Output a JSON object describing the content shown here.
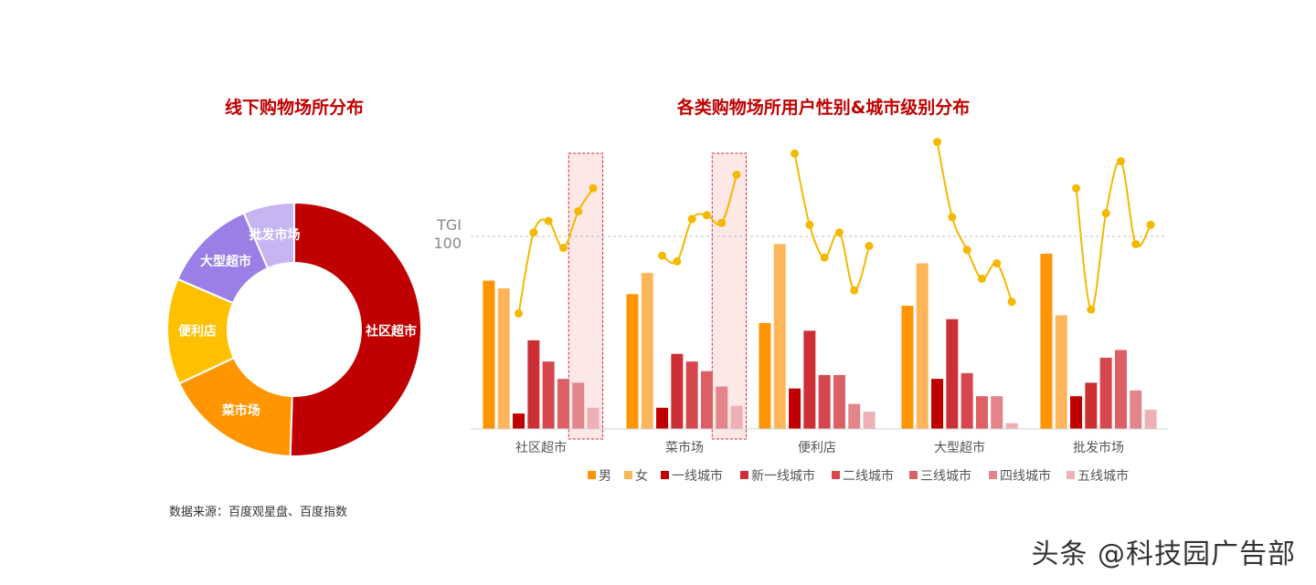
{
  "watermark": "头条 @科技园广告部",
  "source": "数据来源：百度观星盘、百度指数",
  "chart_data": [
    {
      "type": "pie",
      "donut": true,
      "title": "线下购物场所分布",
      "categories": [
        "社区超市",
        "菜市场",
        "便利店",
        "大型超市",
        "批发市场"
      ],
      "values": [
        50.5,
        17.5,
        13.5,
        12,
        6.5
      ],
      "colors": [
        "#c00000",
        "#ff9500",
        "#ffc000",
        "#9b7fe6",
        "#c7b5f2"
      ]
    },
    {
      "type": "bar+line",
      "title": "各类购物场所用户性别&城市级别分布",
      "categories": [
        "社区超市",
        "菜市场",
        "便利店",
        "大型超市",
        "批发市场"
      ],
      "reference_line": {
        "label_top": "TGI",
        "label_bottom": "100",
        "value": 100
      },
      "series": [
        {
          "name": "男",
          "color": "#ff9500",
          "values": [
            77,
            70,
            55,
            64,
            91
          ]
        },
        {
          "name": "女",
          "color": "#ffb55a",
          "values": [
            73,
            81,
            96,
            86,
            59
          ]
        },
        {
          "name": "一线城市",
          "color": "#c00000",
          "values": [
            8,
            11,
            21,
            26,
            17
          ]
        },
        {
          "name": "新一线城市",
          "color": "#cc2f36",
          "values": [
            46,
            39,
            51,
            57,
            24
          ]
        },
        {
          "name": "二线城市",
          "color": "#d6474d",
          "values": [
            35,
            35,
            28,
            29,
            37
          ]
        },
        {
          "name": "三线城市",
          "color": "#dc6166",
          "values": [
            26,
            30,
            28,
            17,
            41
          ]
        },
        {
          "name": "四线城市",
          "color": "#e2858a",
          "values": [
            24,
            22,
            13,
            17,
            20
          ]
        },
        {
          "name": "五线城市",
          "color": "#edb0b4",
          "values": [
            11,
            12,
            9,
            3,
            10
          ]
        }
      ],
      "tgi_line": {
        "color": "#f5b800",
        "applies_to": [
          "一线城市",
          "新一线城市",
          "二线城市",
          "三线城市",
          "四线城市",
          "五线城市"
        ],
        "values": [
          [
            60,
            102,
            108,
            94,
            113,
            125
          ],
          [
            90,
            87,
            109,
            111,
            107,
            132
          ],
          [
            143,
            106,
            89,
            102,
            72,
            95
          ],
          [
            149,
            110,
            93,
            78,
            86,
            66
          ],
          [
            125,
            62,
            112,
            139,
            96,
            106
          ]
        ]
      },
      "highlight": {
        "categories": [
          "社区超市",
          "菜市场"
        ],
        "series": [
          "四线城市",
          "五线城市"
        ],
        "color": "#d42030"
      },
      "legend_position": "bottom",
      "grid": false
    }
  ]
}
